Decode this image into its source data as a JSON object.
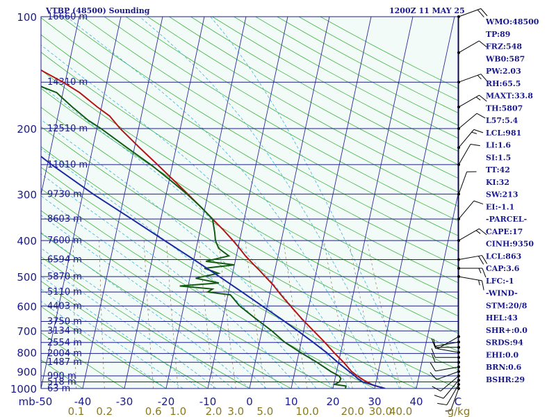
{
  "header": {
    "station": "VTBP (48500) Sounding",
    "time": "1200Z 11 MAY 25"
  },
  "colors": {
    "background": "#ffffff",
    "plot_bg": "#f3fbf8",
    "isobar": "#1a1a8c",
    "isotherm": "#2a2a9c",
    "dry_adiabat": "#3cb43c",
    "moist_adiabat": "#3bb4d8",
    "mixing_ratio": "#8c7a5a",
    "temperature": "#b41414",
    "dewpoint": "#145a14",
    "parcel": "#1a2aa0",
    "wind": "#000000",
    "mr_labels": "#8a7a20"
  },
  "indices": [
    "WMO:48500",
    "TP:89",
    "FRZ:548",
    "WB0:587",
    "PW:2.03",
    "RH:65.5",
    "MAXT:33.8",
    "TH:5807",
    "L57:5.4",
    "LCL:981",
    "LI:1.6",
    "SI:1.5",
    "TT:42",
    "KI:32",
    "SW:213",
    "EI:-1.1",
    "-PARCEL-",
    "CAPE:17",
    "CINH:9350",
    "LCL:863",
    "CAP:3.6",
    "LFC:-1",
    "-WIND-",
    "STM:20/8",
    "HEL:43",
    "SHR+:0.0",
    "SRDS:94",
    "EHI:0.0",
    "BRN:0.6",
    "BSHR:29"
  ],
  "chart_data": {
    "type": "line",
    "title": "VTBP (48500) Sounding",
    "subtitle": "1200Z 11 MAY 25",
    "xlabel": "C",
    "ylabel": "mb",
    "x_range": [
      -50,
      50
    ],
    "y_range": [
      1000,
      100
    ],
    "y_scale": "log",
    "pressure_ticks": [
      100,
      200,
      300,
      400,
      500,
      600,
      700,
      800,
      900,
      1000
    ],
    "pressure_tick_labels": [
      "100",
      "200",
      "300",
      "400",
      "500",
      "600",
      "700",
      "800",
      "900",
      "1000"
    ],
    "temperature_ticks": [
      -50,
      -40,
      -30,
      -20,
      -10,
      0,
      10,
      20,
      30,
      40
    ],
    "temperature_tick_labels": [
      "mb-50",
      "-40",
      "-30",
      "-20",
      "-10",
      "0",
      "10",
      "20",
      "30",
      "40"
    ],
    "temperature_axis_unit": "C",
    "mixing_ratio_labels": [
      "0.1",
      "0.2",
      "0.6",
      "1.0",
      "2.0",
      "3.0",
      "5.0",
      "10.0",
      "20.0",
      "30.0",
      "40.0"
    ],
    "mixing_ratio_unit": "g/kg",
    "height_levels": [
      {
        "p": 1000,
        "label": "63 m"
      },
      {
        "p": 960,
        "label": "518 m"
      },
      {
        "p": 925,
        "label": "990 m"
      },
      {
        "p": 850,
        "label": "1487 m"
      },
      {
        "p": 805,
        "label": "2004 m"
      },
      {
        "p": 752,
        "label": "2554 m"
      },
      {
        "p": 700,
        "label": "3134 m"
      },
      {
        "p": 660,
        "label": "3750 m"
      },
      {
        "p": 600,
        "label": "4403 m"
      },
      {
        "p": 550,
        "label": "5110 m"
      },
      {
        "p": 500,
        "label": "5870 m"
      },
      {
        "p": 450,
        "label": "6594 m"
      },
      {
        "p": 400,
        "label": "7600 m"
      },
      {
        "p": 350,
        "label": "8603 m"
      },
      {
        "p": 300,
        "label": "9730 m"
      },
      {
        "p": 250,
        "label": "11010 m"
      },
      {
        "p": 200,
        "label": "12510 m"
      },
      {
        "p": 150,
        "label": "14310 m"
      },
      {
        "p": 100,
        "label": "16660 m"
      }
    ],
    "series": [
      {
        "name": "Temperature",
        "points": [
          [
            1000,
            32.5
          ],
          [
            980,
            29.5
          ],
          [
            950,
            27.0
          ],
          [
            925,
            25.2
          ],
          [
            900,
            23.6
          ],
          [
            850,
            21.2
          ],
          [
            800,
            18.4
          ],
          [
            750,
            15.6
          ],
          [
            700,
            12.4
          ],
          [
            650,
            9.0
          ],
          [
            600,
            5.6
          ],
          [
            575,
            3.8
          ],
          [
            550,
            2.0
          ],
          [
            525,
            0.2
          ],
          [
            500,
            -2.0
          ],
          [
            480,
            -3.8
          ],
          [
            460,
            -5.8
          ],
          [
            440,
            -7.8
          ],
          [
            420,
            -9.6
          ],
          [
            400,
            -11.6
          ],
          [
            375,
            -14.4
          ],
          [
            350,
            -17.6
          ],
          [
            325,
            -21.0
          ],
          [
            300,
            -24.8
          ],
          [
            275,
            -29.0
          ],
          [
            250,
            -33.6
          ],
          [
            225,
            -38.8
          ],
          [
            200,
            -44.4
          ],
          [
            185,
            -47.6
          ],
          [
            175,
            -51.0
          ],
          [
            160,
            -56.0
          ],
          [
            150,
            -60.5
          ],
          [
            140,
            -66.0
          ],
          [
            125,
            -73.5
          ],
          [
            110,
            -81.0
          ],
          [
            100,
            -85.8
          ]
        ]
      },
      {
        "name": "Dewpoint",
        "points": [
          [
            1000,
            23.0
          ],
          [
            985,
            23.0
          ],
          [
            975,
            20.2
          ],
          [
            960,
            21.2
          ],
          [
            940,
            21.4
          ],
          [
            925,
            20.8
          ],
          [
            900,
            18.6
          ],
          [
            850,
            14.8
          ],
          [
            800,
            10.4
          ],
          [
            750,
            6.0
          ],
          [
            700,
            2.4
          ],
          [
            650,
            -2.0
          ],
          [
            600,
            -6.6
          ],
          [
            560,
            -9.4
          ],
          [
            550,
            -15.0
          ],
          [
            540,
            -14.0
          ],
          [
            530,
            -22.0
          ],
          [
            520,
            -12.8
          ],
          [
            505,
            -18.6
          ],
          [
            490,
            -13.4
          ],
          [
            475,
            -17.0
          ],
          [
            465,
            -10.0
          ],
          [
            455,
            -17.0
          ],
          [
            440,
            -11.8
          ],
          [
            420,
            -14.6
          ],
          [
            400,
            -15.8
          ],
          [
            380,
            -16.4
          ],
          [
            350,
            -17.6
          ],
          [
            325,
            -21.0
          ],
          [
            300,
            -25.0
          ],
          [
            275,
            -29.8
          ],
          [
            250,
            -35.2
          ],
          [
            225,
            -41.8
          ],
          [
            200,
            -49.0
          ],
          [
            190,
            -52.5
          ],
          [
            175,
            -57.0
          ],
          [
            165,
            -60.0
          ],
          [
            160,
            -61.5
          ],
          [
            150,
            -68.5
          ],
          [
            140,
            -73.5
          ],
          [
            130,
            -79.0
          ],
          [
            120,
            -84.0
          ],
          [
            110,
            -89.0
          ],
          [
            100,
            -93.7
          ]
        ]
      },
      {
        "name": "Parcel",
        "points": [
          [
            1000,
            32.5
          ],
          [
            980,
            29.6
          ],
          [
            960,
            26.8
          ],
          [
            940,
            25.4
          ],
          [
            925,
            24.6
          ],
          [
            900,
            23.0
          ],
          [
            850,
            19.8
          ],
          [
            800,
            16.6
          ],
          [
            750,
            12.8
          ],
          [
            700,
            8.6
          ],
          [
            650,
            4.0
          ],
          [
            600,
            -1.2
          ],
          [
            550,
            -6.8
          ],
          [
            500,
            -13.0
          ],
          [
            450,
            -20.0
          ],
          [
            400,
            -28.0
          ],
          [
            350,
            -37.0
          ],
          [
            300,
            -47.5
          ],
          [
            250,
            -59.0
          ],
          [
            200,
            -72.0
          ],
          [
            150,
            -84.0
          ],
          [
            100,
            -93.5
          ]
        ]
      }
    ],
    "winds": [
      {
        "p": 1000,
        "dir": 200,
        "spd": 5
      },
      {
        "p": 975,
        "dir": 210,
        "spd": 10
      },
      {
        "p": 950,
        "dir": 220,
        "spd": 10
      },
      {
        "p": 925,
        "dir": 230,
        "spd": 10
      },
      {
        "p": 900,
        "dir": 250,
        "spd": 10
      },
      {
        "p": 875,
        "dir": 260,
        "spd": 10
      },
      {
        "p": 850,
        "dir": 270,
        "spd": 10
      },
      {
        "p": 825,
        "dir": 270,
        "spd": 10
      },
      {
        "p": 800,
        "dir": 280,
        "spd": 10
      },
      {
        "p": 775,
        "dir": 270,
        "spd": 10
      },
      {
        "p": 750,
        "dir": 260,
        "spd": 5
      },
      {
        "p": 725,
        "dir": 240,
        "spd": 5
      },
      {
        "p": 500,
        "dir": 100,
        "spd": 15
      },
      {
        "p": 475,
        "dir": 90,
        "spd": 15
      },
      {
        "p": 450,
        "dir": 80,
        "spd": 20
      },
      {
        "p": 400,
        "dir": 60,
        "spd": 15
      },
      {
        "p": 350,
        "dir": 40,
        "spd": 10
      },
      {
        "p": 300,
        "dir": 20,
        "spd": 10
      },
      {
        "p": 250,
        "dir": 30,
        "spd": 10
      },
      {
        "p": 225,
        "dir": 40,
        "spd": 15
      },
      {
        "p": 200,
        "dir": 50,
        "spd": 10
      },
      {
        "p": 175,
        "dir": 60,
        "spd": 15
      },
      {
        "p": 150,
        "dir": 70,
        "spd": 15
      },
      {
        "p": 125,
        "dir": 60,
        "spd": 10
      },
      {
        "p": 100,
        "dir": 70,
        "spd": 20
      }
    ]
  }
}
